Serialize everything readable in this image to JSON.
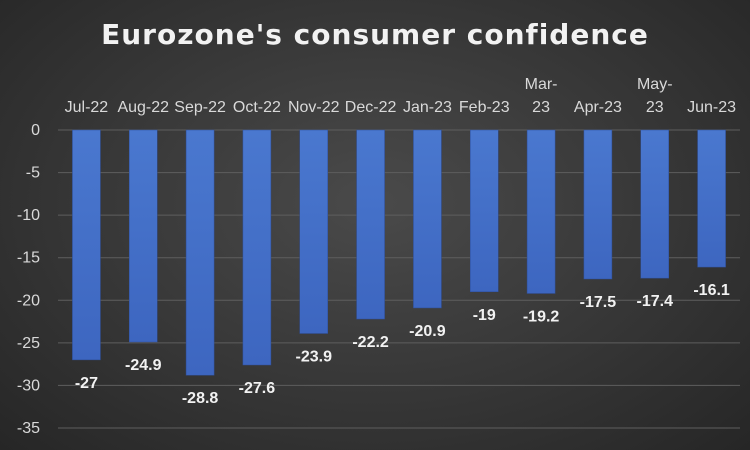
{
  "chart_data": {
    "type": "bar",
    "title": "Eurozone's consumer confidence",
    "xlabel": "",
    "ylabel": "",
    "categories": [
      "Jul-22",
      "Aug-22",
      "Sep-22",
      "Oct-22",
      "Nov-22",
      "Dec-22",
      "Jan-23",
      "Feb-23",
      "Mar-23",
      "Apr-23",
      "May-23",
      "Jun-23"
    ],
    "values": [
      -27,
      -24.9,
      -28.8,
      -27.6,
      -23.9,
      -22.2,
      -20.9,
      -19,
      -19.2,
      -17.5,
      -17.4,
      -16.1
    ],
    "ylim": [
      -35,
      0
    ],
    "yticks": [
      0,
      -5,
      -10,
      -15,
      -20,
      -25,
      -30,
      -35
    ],
    "grid": true,
    "legend": "none",
    "bar_color": "#4472c4",
    "x_axis_position": "top"
  }
}
